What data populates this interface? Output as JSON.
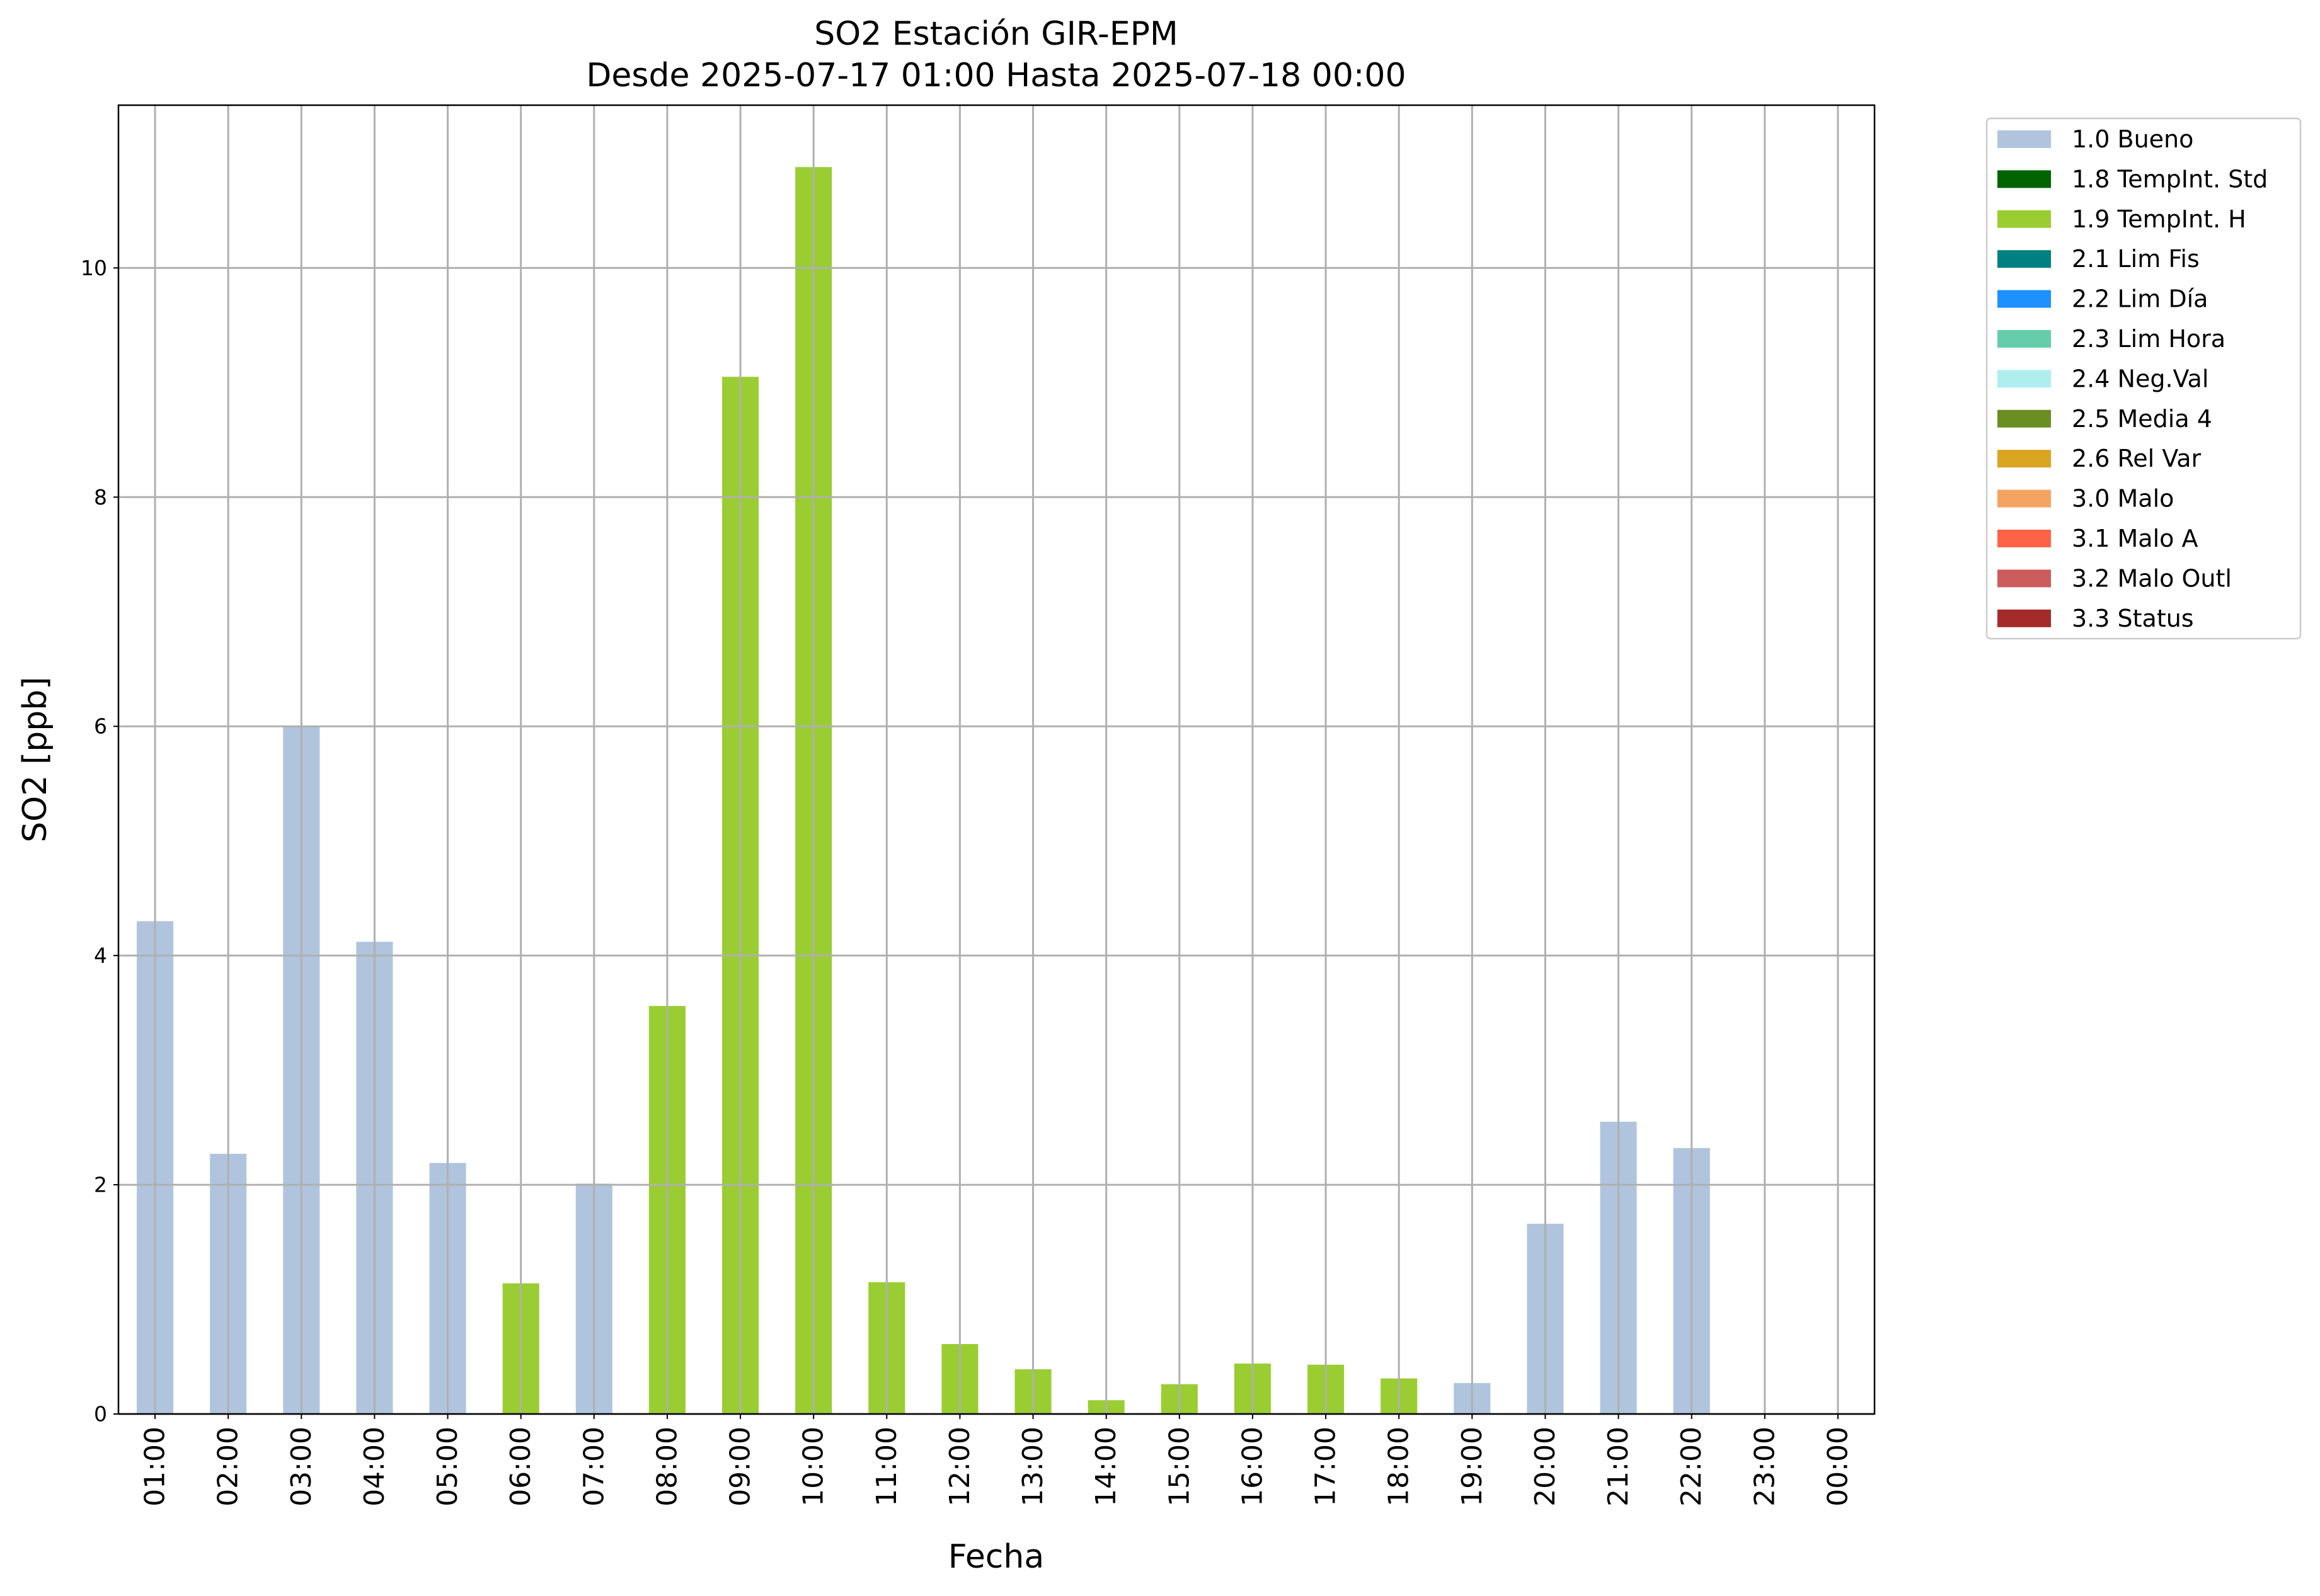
{
  "chart_data": {
    "type": "bar",
    "title": "SO2 Estación GIR-EPM",
    "subtitle": "Desde 2025-07-17 01:00 Hasta 2025-07-18 00:00",
    "x_label": "Fecha",
    "y_label": "SO2 [ppb]",
    "categories": [
      "01:00",
      "02:00",
      "03:00",
      "04:00",
      "05:00",
      "06:00",
      "07:00",
      "08:00",
      "09:00",
      "10:00",
      "11:00",
      "12:00",
      "13:00",
      "14:00",
      "15:00",
      "16:00",
      "17:00",
      "18:00",
      "19:00",
      "20:00",
      "21:00",
      "22:00",
      "23:00",
      "00:00"
    ],
    "series": [
      {
        "name": "1.0 Bueno",
        "color": "#b0c4de",
        "values": [
          4.3,
          2.27,
          6.0,
          4.12,
          2.19,
          null,
          2.01,
          null,
          null,
          null,
          null,
          null,
          null,
          null,
          null,
          null,
          null,
          null,
          0.27,
          1.66,
          2.55,
          2.32,
          null,
          null
        ]
      },
      {
        "name": "1.8 TempInt. Std",
        "color": "#006400",
        "values": [
          null,
          null,
          null,
          null,
          null,
          null,
          null,
          null,
          null,
          null,
          null,
          null,
          null,
          null,
          null,
          null,
          null,
          null,
          null,
          null,
          null,
          null,
          null,
          null
        ]
      },
      {
        "name": "1.9 TempInt. H",
        "color": "#9acd32",
        "values": [
          null,
          null,
          null,
          null,
          null,
          1.14,
          null,
          3.56,
          9.05,
          10.88,
          1.15,
          0.61,
          0.39,
          0.12,
          0.26,
          0.44,
          0.43,
          0.31,
          null,
          null,
          null,
          null,
          null,
          null
        ]
      },
      {
        "name": "2.1 Lim Fis",
        "color": "#008080",
        "values": [
          null,
          null,
          null,
          null,
          null,
          null,
          null,
          null,
          null,
          null,
          null,
          null,
          null,
          null,
          null,
          null,
          null,
          null,
          null,
          null,
          null,
          null,
          null,
          null
        ]
      },
      {
        "name": "2.2 Lim Día",
        "color": "#1e90ff",
        "values": [
          null,
          null,
          null,
          null,
          null,
          null,
          null,
          null,
          null,
          null,
          null,
          null,
          null,
          null,
          null,
          null,
          null,
          null,
          null,
          null,
          null,
          null,
          null,
          null
        ]
      },
      {
        "name": "2.3 Lim Hora",
        "color": "#66cdaa",
        "values": [
          null,
          null,
          null,
          null,
          null,
          null,
          null,
          null,
          null,
          null,
          null,
          null,
          null,
          null,
          null,
          null,
          null,
          null,
          null,
          null,
          null,
          null,
          null,
          null
        ]
      },
      {
        "name": "2.4 Neg.Val",
        "color": "#afeeee",
        "values": [
          null,
          null,
          null,
          null,
          null,
          null,
          null,
          null,
          null,
          null,
          null,
          null,
          null,
          null,
          null,
          null,
          null,
          null,
          null,
          null,
          null,
          null,
          null,
          null
        ]
      },
      {
        "name": "2.5 Media 4",
        "color": "#6b8e23",
        "values": [
          null,
          null,
          null,
          null,
          null,
          null,
          null,
          null,
          null,
          null,
          null,
          null,
          null,
          null,
          null,
          null,
          null,
          null,
          null,
          null,
          null,
          null,
          null,
          null
        ]
      },
      {
        "name": "2.6 Rel Var",
        "color": "#daa520",
        "values": [
          null,
          null,
          null,
          null,
          null,
          null,
          null,
          null,
          null,
          null,
          null,
          null,
          null,
          null,
          null,
          null,
          null,
          null,
          null,
          null,
          null,
          null,
          null,
          null
        ]
      },
      {
        "name": "3.0 Malo",
        "color": "#f4a460",
        "values": [
          null,
          null,
          null,
          null,
          null,
          null,
          null,
          null,
          null,
          null,
          null,
          null,
          null,
          null,
          null,
          null,
          null,
          null,
          null,
          null,
          null,
          null,
          null,
          null
        ]
      },
      {
        "name": "3.1 Malo A",
        "color": "#ff6347",
        "values": [
          null,
          null,
          null,
          null,
          null,
          null,
          null,
          null,
          null,
          null,
          null,
          null,
          null,
          null,
          null,
          null,
          null,
          null,
          null,
          null,
          null,
          null,
          null,
          null
        ]
      },
      {
        "name": "3.2 Malo Outl",
        "color": "#cd5c5c",
        "values": [
          null,
          null,
          null,
          null,
          null,
          null,
          null,
          null,
          null,
          null,
          null,
          null,
          null,
          null,
          null,
          null,
          null,
          null,
          null,
          null,
          null,
          null,
          null,
          null
        ]
      },
      {
        "name": "3.3 Status",
        "color": "#a52a2a",
        "values": [
          null,
          null,
          null,
          null,
          null,
          null,
          null,
          null,
          null,
          null,
          null,
          null,
          null,
          null,
          null,
          null,
          null,
          null,
          null,
          null,
          null,
          null,
          null,
          null
        ]
      }
    ],
    "ylim": [
      0,
      11.42
    ],
    "yticks": [
      0,
      2,
      4,
      6,
      8,
      10
    ],
    "grid": true,
    "legend": "outside-right"
  }
}
